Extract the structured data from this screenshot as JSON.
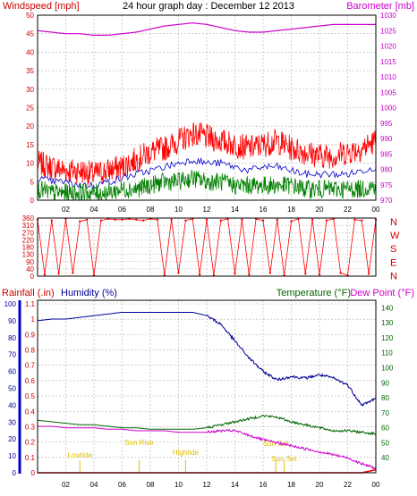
{
  "colors": {
    "windspeed": "#ff0000",
    "windgust": "#ff0000",
    "windavg": "#0000cc",
    "windmin": "#008000",
    "barometer": "#cc00cc",
    "winddir": "#ff0000",
    "rainfall": "#ff0000",
    "humidity": "#000099",
    "temperature": "#006600",
    "dewpoint": "#cc00cc",
    "events": "#e0c000"
  },
  "chart_data": [
    {
      "type": "line",
      "title": "24 hour graph day : December 12 2013",
      "ylabel": "Windspeed [mph]",
      "y2label": "Barometer [mb]",
      "ylim": [
        0,
        50
      ],
      "y2lim": [
        970,
        1030
      ],
      "yticks": [
        "0",
        "5",
        "10",
        "15",
        "20",
        "25",
        "30",
        "35",
        "40",
        "45",
        "50"
      ],
      "y2ticks": [
        "970",
        "975",
        "980",
        "985",
        "990",
        "995",
        "1000",
        "1005",
        "1010",
        "1015",
        "1020",
        "1025",
        "1030"
      ],
      "xticks": [
        "02",
        "04",
        "06",
        "08",
        "10",
        "12",
        "14",
        "16",
        "18",
        "20",
        "22",
        "00"
      ],
      "x_hours": [
        0,
        1,
        2,
        3,
        4,
        5,
        6,
        7,
        8,
        9,
        10,
        11,
        12,
        13,
        14,
        15,
        16,
        17,
        18,
        19,
        20,
        21,
        22,
        23,
        24
      ],
      "series": [
        {
          "key": "gust",
          "axis": "left",
          "values": [
            10,
            9,
            8,
            8,
            7,
            8,
            9,
            11,
            13,
            14,
            16,
            18,
            17,
            16,
            15,
            14,
            15,
            16,
            14,
            13,
            12,
            12,
            13,
            14,
            16
          ]
        },
        {
          "key": "avg",
          "axis": "left",
          "values": [
            6,
            5,
            5,
            4,
            4,
            5,
            6,
            7,
            8,
            9,
            10,
            11,
            10,
            10,
            9,
            8,
            9,
            9,
            8,
            7,
            7,
            7,
            7,
            8,
            9
          ]
        },
        {
          "key": "min",
          "axis": "left",
          "values": [
            3,
            2,
            2,
            2,
            2,
            2,
            3,
            3,
            4,
            5,
            5,
            6,
            5,
            5,
            4,
            4,
            4,
            4,
            4,
            3,
            3,
            3,
            3,
            3,
            4
          ]
        },
        {
          "key": "baro",
          "axis": "right",
          "values": [
            1025,
            1024.5,
            1024,
            1024,
            1023.5,
            1023.5,
            1024,
            1024.5,
            1025.5,
            1026.5,
            1027,
            1027.5,
            1027,
            1026,
            1025,
            1024.5,
            1024.5,
            1025,
            1025.5,
            1026,
            1026.5,
            1027,
            1027,
            1027,
            1027
          ]
        }
      ]
    },
    {
      "type": "scatter",
      "ylabel_right": [
        "N",
        "W",
        "S",
        "E",
        "N"
      ],
      "ylim": [
        0,
        360
      ],
      "yticks": [
        "0",
        "40",
        "90",
        "130",
        "180",
        "220",
        "270",
        "310",
        "360"
      ],
      "x_hours": [
        0,
        0.5,
        1,
        1.5,
        2,
        2.5,
        3,
        3.5,
        4,
        4.5,
        5,
        5.5,
        6,
        6.5,
        7,
        7.5,
        8,
        8.5,
        9,
        9.5,
        10,
        10.5,
        11,
        11.5,
        12,
        12.5,
        13,
        13.5,
        14,
        14.5,
        15,
        15.5,
        16,
        16.5,
        17,
        17.5,
        18,
        18.5,
        19,
        19.5,
        20,
        20.5,
        21,
        21.5,
        22,
        22.5,
        23,
        23.5,
        24
      ],
      "values": [
        350,
        10,
        345,
        15,
        355,
        20,
        340,
        350,
        5,
        345,
        355,
        350,
        350,
        355,
        350,
        345,
        355,
        350,
        5,
        350,
        20,
        345,
        355,
        10,
        350,
        5,
        345,
        355,
        15,
        350,
        10,
        355,
        345,
        20,
        350,
        5,
        340,
        355,
        15,
        350,
        10,
        345,
        355,
        20,
        5,
        350,
        345,
        15,
        350
      ]
    },
    {
      "type": "line",
      "ylabel_rain": "Rainfall (.in)",
      "ylabel_hum": "Humidity (%)",
      "ylabel_temp": "Temperature (°F)",
      "ylabel_dew": "Dew Point (°F)",
      "hum_ylim": [
        0,
        100
      ],
      "rain_ylim": [
        0,
        1.1
      ],
      "temp_ylim": [
        30,
        145
      ],
      "hum_ticks": [
        "0",
        "10",
        "20",
        "30",
        "40",
        "50",
        "60",
        "70",
        "80",
        "90",
        "100"
      ],
      "rain_ticks": [
        "0",
        "0.1",
        "0.2",
        "0.3",
        "0.4",
        "0.5",
        "0.6",
        "0.7",
        "0.8",
        "0.9",
        "1",
        "1.1"
      ],
      "temp_ticks": [
        "40",
        "50",
        "60",
        "70",
        "80",
        "90",
        "100",
        "110",
        "120",
        "130",
        "140"
      ],
      "xticks": [
        "02",
        "04",
        "06",
        "08",
        "10",
        "12",
        "14",
        "16",
        "18",
        "20",
        "22",
        "00"
      ],
      "x_hours": [
        0,
        1,
        2,
        3,
        4,
        5,
        6,
        7,
        8,
        9,
        10,
        11,
        12,
        13,
        14,
        15,
        16,
        17,
        18,
        19,
        20,
        21,
        22,
        23,
        24
      ],
      "series": [
        {
          "key": "humidity",
          "axis": "hum",
          "values": [
            90,
            91,
            91,
            92,
            93,
            94,
            95,
            95,
            95,
            95,
            95,
            95,
            93,
            88,
            78,
            68,
            60,
            55,
            57,
            56,
            58,
            56,
            52,
            40,
            44
          ]
        },
        {
          "key": "temperature",
          "axis": "temp",
          "values": [
            65,
            64,
            63,
            62,
            62,
            61,
            60,
            60,
            59,
            59,
            59,
            59,
            60,
            62,
            64,
            66,
            68,
            67,
            64,
            62,
            60,
            58,
            58,
            57,
            56
          ]
        },
        {
          "key": "dewpoint",
          "axis": "temp",
          "values": [
            61,
            61,
            60,
            60,
            60,
            59,
            59,
            58,
            58,
            58,
            57,
            57,
            57,
            58,
            58,
            55,
            52,
            50,
            48,
            46,
            44,
            42,
            40,
            36,
            33
          ]
        },
        {
          "key": "rain",
          "axis": "rain",
          "values": [
            0,
            0,
            0,
            0,
            0,
            0,
            0,
            0,
            0,
            0,
            0,
            0,
            0,
            0,
            0,
            0,
            0,
            0,
            0,
            0,
            0,
            0,
            0,
            0,
            0.02
          ]
        }
      ],
      "events": [
        {
          "label": "Lowtide",
          "hour": 3.0
        },
        {
          "label": "Sun Rise",
          "hour": 7.2
        },
        {
          "label": "Hightide",
          "hour": 10.5
        },
        {
          "label": "Sun Set",
          "hour": 16.9
        },
        {
          "label": "Sun Set",
          "hour": 17.5
        }
      ]
    }
  ]
}
